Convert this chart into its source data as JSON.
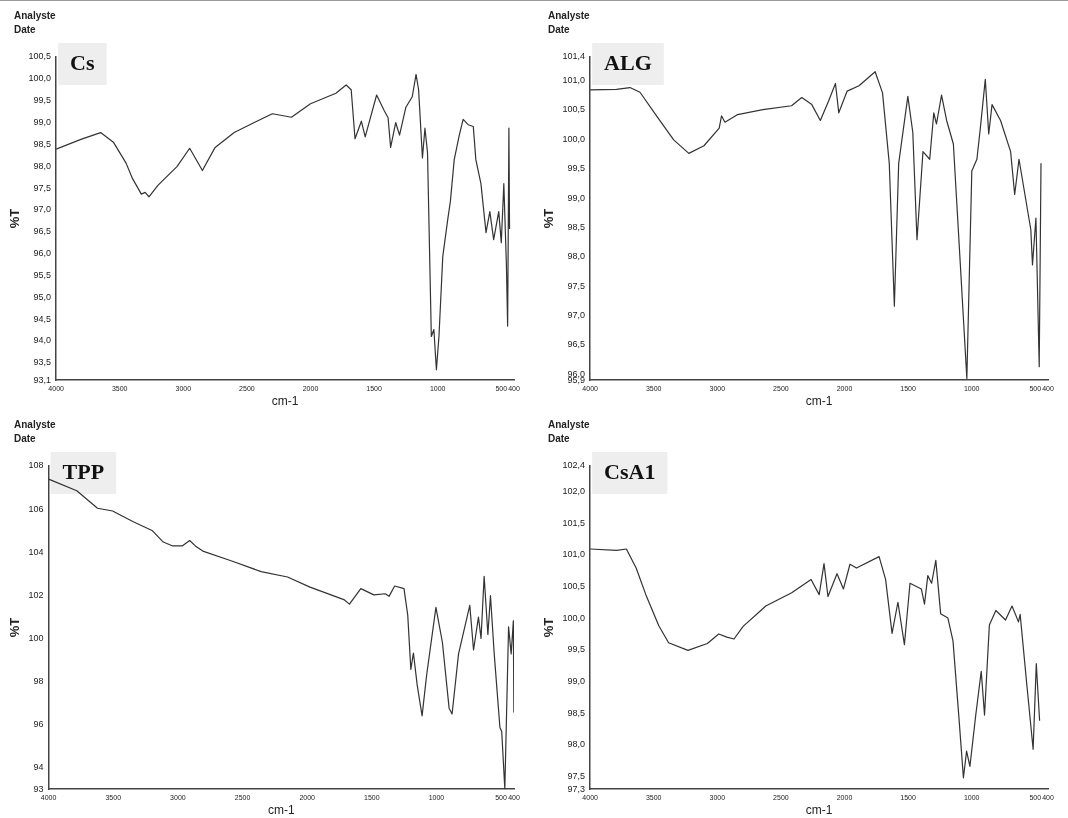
{
  "chart_data": [
    {
      "type": "line",
      "title": "Cs",
      "xlabel": "cm-1",
      "ylabel": "%T",
      "annotations": [
        "Analyste",
        "Date"
      ],
      "legend": false,
      "grid": false,
      "marker": "none",
      "line_style": "solid",
      "xlim": [
        4000,
        400
      ],
      "xticks": [
        4000,
        3500,
        3000,
        2500,
        2000,
        1500,
        1000,
        500,
        400
      ],
      "ylim": [
        93.1,
        100.5
      ],
      "yticks": [
        {
          "value": 93.1,
          "label": "93,1"
        },
        {
          "value": 93.5,
          "label": "93,5"
        },
        {
          "value": 94,
          "label": "94,0"
        },
        {
          "value": 94.5,
          "label": "94,5"
        },
        {
          "value": 95,
          "label": "95,0"
        },
        {
          "value": 95.5,
          "label": "95,5"
        },
        {
          "value": 96,
          "label": "96,0"
        },
        {
          "value": 96.5,
          "label": "96,5"
        },
        {
          "value": 97,
          "label": "97,0"
        },
        {
          "value": 97.5,
          "label": "97,5"
        },
        {
          "value": 98,
          "label": "98,0"
        },
        {
          "value": 98.5,
          "label": "98,5"
        },
        {
          "value": 99,
          "label": "99,0"
        },
        {
          "value": 99.5,
          "label": "99,5"
        },
        {
          "value": 100,
          "label": "100,0"
        },
        {
          "value": 100.5,
          "label": "100,5"
        }
      ],
      "series": [
        {
          "color": "#333333",
          "x": [
            4000,
            3800,
            3650,
            3550,
            3450,
            3400,
            3330,
            3300,
            3270,
            3200,
            3050,
            2950,
            2850,
            2750,
            2600,
            2450,
            2300,
            2150,
            2000,
            1800,
            1720,
            1680,
            1650,
            1600,
            1570,
            1480,
            1420,
            1390,
            1370,
            1330,
            1300,
            1250,
            1200,
            1170,
            1150,
            1120,
            1100,
            1080,
            1050,
            1030,
            1010,
            990,
            960,
            920,
            900,
            870,
            830,
            800,
            760,
            720,
            700,
            660,
            620,
            590,
            560,
            520,
            500,
            480,
            460,
            450,
            440,
            435
          ],
          "values": [
            98.39,
            98.62,
            98.77,
            98.55,
            98.07,
            97.72,
            97.36,
            97.4,
            97.3,
            97.56,
            97.99,
            98.41,
            97.9,
            98.43,
            98.77,
            98.99,
            99.2,
            99.12,
            99.43,
            99.67,
            99.86,
            99.75,
            98.63,
            99.03,
            98.67,
            99.63,
            99.27,
            99.11,
            98.43,
            99.0,
            98.71,
            99.35,
            99.59,
            100.1,
            99.75,
            98.19,
            98.87,
            98.31,
            94.1,
            94.26,
            93.34,
            94.1,
            95.93,
            96.8,
            97.2,
            98.15,
            98.71,
            99.07,
            98.95,
            98.91,
            98.15,
            97.6,
            96.48,
            96.96,
            96.32,
            96.96,
            96.25,
            97.6,
            95.77,
            94.34,
            98.87,
            96.56
          ]
        }
      ]
    },
    {
      "type": "line",
      "title": "ALG",
      "xlabel": "cm-1",
      "ylabel": "%T",
      "annotations": [
        "Analyste",
        "Date"
      ],
      "legend": false,
      "grid": false,
      "marker": "none",
      "line_style": "solid",
      "xlim": [
        4000,
        400
      ],
      "xticks": [
        4000,
        3500,
        3000,
        2500,
        2000,
        1500,
        1000,
        500,
        400
      ],
      "ylim": [
        95.9,
        101.4
      ],
      "yticks": [
        {
          "value": 95.9,
          "label": "95,9"
        },
        {
          "value": 96,
          "label": "96,0"
        },
        {
          "value": 96.5,
          "label": "96,5"
        },
        {
          "value": 97,
          "label": "97,0"
        },
        {
          "value": 97.5,
          "label": "97,5"
        },
        {
          "value": 98,
          "label": "98,0"
        },
        {
          "value": 98.5,
          "label": "98,5"
        },
        {
          "value": 99,
          "label": "99,0"
        },
        {
          "value": 99.5,
          "label": "99,5"
        },
        {
          "value": 100,
          "label": "100,0"
        },
        {
          "value": 100.5,
          "label": "100,5"
        },
        {
          "value": 101,
          "label": "101,0"
        },
        {
          "value": 101.4,
          "label": "101,4"
        }
      ],
      "series": [
        {
          "color": "#333333",
          "x": [
            4000,
            3793,
            3687,
            3608,
            3475,
            3343,
            3224,
            3105,
            2985,
            2967,
            2940,
            2840,
            2628,
            2416,
            2336,
            2257,
            2190,
            2125,
            2071,
            2045,
            1979,
            1886,
            1759,
            1701,
            1648,
            1608,
            1574,
            1502,
            1463,
            1430,
            1383,
            1330,
            1298,
            1277,
            1237,
            1197,
            1144,
            1105,
            1038,
            999,
            959,
            932,
            893,
            866,
            840,
            773,
            694,
            662,
            628,
            535,
            522,
            495,
            469,
            455
          ],
          "values": [
            100.84,
            100.85,
            100.88,
            100.8,
            100.39,
            99.99,
            99.76,
            99.89,
            100.19,
            100.4,
            100.29,
            100.42,
            100.51,
            100.57,
            100.71,
            100.59,
            100.32,
            100.65,
            100.95,
            100.45,
            100.82,
            100.91,
            101.15,
            100.79,
            99.59,
            97.16,
            99.59,
            100.73,
            100.12,
            98.29,
            99.79,
            99.66,
            100.45,
            100.26,
            100.75,
            100.32,
            99.92,
            98.46,
            95.93,
            99.46,
            99.66,
            100.19,
            101.02,
            100.09,
            100.59,
            100.32,
            99.79,
            99.06,
            99.66,
            98.46,
            97.86,
            98.66,
            96.13,
            99.59
          ]
        }
      ]
    },
    {
      "type": "line",
      "title": "TPP",
      "xlabel": "cm-1",
      "ylabel": "%T",
      "annotations": [
        "Analyste",
        "Date"
      ],
      "legend": false,
      "grid": false,
      "marker": "none",
      "line_style": "solid",
      "xlim": [
        4000,
        400
      ],
      "xticks": [
        4000,
        3500,
        3000,
        2500,
        2000,
        1500,
        1000,
        500,
        400
      ],
      "ylim": [
        93,
        108
      ],
      "yticks": [
        93,
        94,
        96,
        98,
        100,
        102,
        104,
        106,
        108
      ],
      "series": [
        {
          "color": "#333333",
          "x": [
            4000,
            3782,
            3622,
            3505,
            3345,
            3200,
            3113,
            3040,
            2967,
            2909,
            2865,
            2807,
            2589,
            2356,
            2152,
            1978,
            1716,
            1673,
            1585,
            1484,
            1396,
            1367,
            1323,
            1251,
            1222,
            1198,
            1178,
            1149,
            1111,
            1076,
            1004,
            954,
            902,
            879,
            829,
            742,
            713,
            675,
            655,
            631,
            602,
            582,
            553,
            509,
            495,
            471,
            442,
            422,
            405,
            401
          ],
          "values": [
            107.39,
            106.85,
            106.04,
            105.91,
            105.41,
            105.01,
            104.47,
            104.29,
            104.29,
            104.54,
            104.29,
            104.05,
            103.6,
            103.1,
            102.85,
            102.38,
            101.8,
            101.59,
            102.31,
            102.02,
            102.07,
            101.95,
            102.43,
            102.31,
            101.08,
            98.56,
            99.32,
            97.84,
            96.4,
            98.29,
            101.44,
            99.82,
            96.76,
            96.49,
            99.28,
            101.53,
            99.46,
            100.99,
            100.0,
            102.88,
            100.18,
            101.98,
            99.28,
            95.86,
            95.68,
            93.01,
            100.54,
            99.28,
            100.81,
            96.58
          ]
        }
      ]
    },
    {
      "type": "line",
      "title": "CsA1",
      "xlabel": "cm-1",
      "ylabel": "%T",
      "annotations": [
        "Analyste",
        "Date"
      ],
      "legend": false,
      "grid": false,
      "marker": "none",
      "line_style": "solid",
      "xlim": [
        4000,
        400
      ],
      "xticks": [
        4000,
        3500,
        3000,
        2500,
        2000,
        1500,
        1000,
        500,
        400
      ],
      "ylim": [
        97.3,
        102.4
      ],
      "yticks": [
        {
          "value": 97.3,
          "label": "97,3"
        },
        {
          "value": 97.5,
          "label": "97,5"
        },
        {
          "value": 98,
          "label": "98,0"
        },
        {
          "value": 98.5,
          "label": "98,5"
        },
        {
          "value": 99,
          "label": "99,0"
        },
        {
          "value": 99.5,
          "label": "99,5"
        },
        {
          "value": 100,
          "label": "100,0"
        },
        {
          "value": 100.5,
          "label": "100,5"
        },
        {
          "value": 101,
          "label": "101,0"
        },
        {
          "value": 101.5,
          "label": "101,5"
        },
        {
          "value": 102,
          "label": "102,0"
        },
        {
          "value": 102.4,
          "label": "102,4"
        }
      ],
      "series": [
        {
          "color": "#333333",
          "x": [
            4000,
            3791,
            3715,
            3638,
            3562,
            3460,
            3383,
            3231,
            3078,
            2989,
            2925,
            2869,
            2797,
            2619,
            2415,
            2263,
            2199,
            2161,
            2130,
            2059,
            2008,
            1957,
            1906,
            1728,
            1677,
            1626,
            1580,
            1529,
            1485,
            1396,
            1371,
            1345,
            1315,
            1282,
            1244,
            1187,
            1147,
            1103,
            1065,
            1040,
            1014,
            968,
            925,
            899,
            861,
            810,
            734,
            683,
            632,
            619,
            568,
            517,
            492,
            466
          ],
          "values": [
            101.09,
            101.07,
            101.09,
            100.79,
            100.37,
            99.88,
            99.61,
            99.49,
            99.6,
            99.75,
            99.7,
            99.67,
            99.87,
            100.19,
            100.4,
            100.61,
            100.37,
            100.86,
            100.34,
            100.7,
            100.46,
            100.85,
            100.79,
            100.97,
            100.61,
            99.76,
            100.25,
            99.58,
            100.55,
            100.46,
            100.22,
            100.67,
            100.55,
            100.91,
            100.07,
            100.0,
            99.64,
            98.5,
            97.48,
            97.9,
            97.66,
            98.47,
            99.16,
            98.47,
            99.89,
            100.12,
            99.97,
            100.19,
            99.94,
            100.06,
            98.98,
            97.93,
            99.28,
            98.38
          ]
        }
      ]
    }
  ]
}
